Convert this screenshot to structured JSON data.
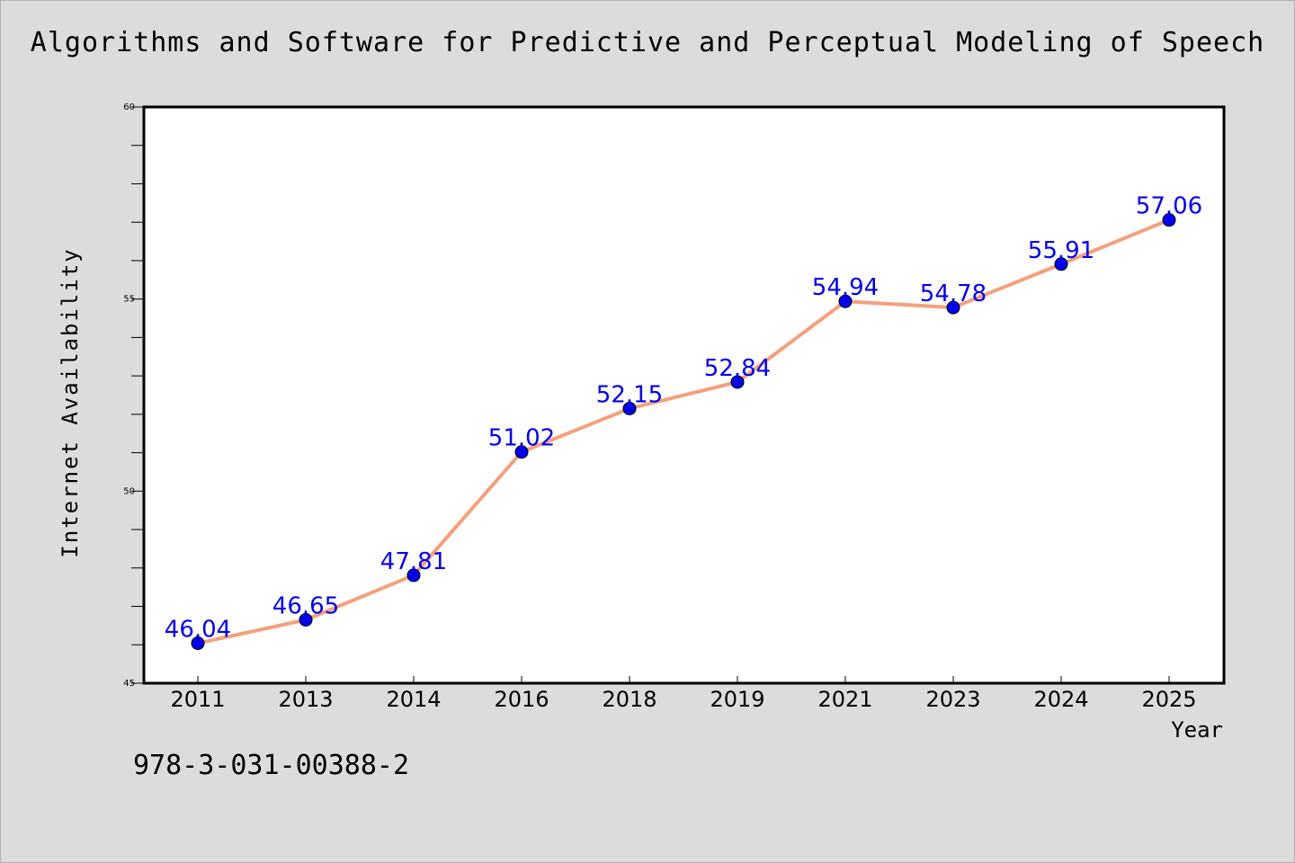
{
  "chart_data": {
    "type": "line",
    "title": "Algorithms and Software for Predictive and Perceptual Modeling of Speech",
    "xlabel": "Year",
    "ylabel": "Internet Availability",
    "categories": [
      "2011",
      "2013",
      "2014",
      "2016",
      "2018",
      "2019",
      "2021",
      "2023",
      "2024",
      "2025"
    ],
    "series": [
      {
        "values": [
          46.04,
          46.65,
          47.81,
          51.02,
          52.15,
          52.84,
          54.94,
          54.78,
          55.91,
          57.06
        ],
        "labels": [
          "46.04",
          "46.65",
          "47.81",
          "51.02",
          "52.15",
          "52.84",
          "54.94",
          "54.78",
          "55.91",
          "57.06"
        ]
      }
    ],
    "ylim": [
      45,
      60
    ],
    "yticks": [
      "45",
      "50",
      "55",
      "60"
    ],
    "grid": false,
    "line_color": "#f4a07c",
    "marker_color": "#0000ee",
    "label_color": "#0000ee"
  },
  "footer": {
    "isbn": "978-3-031-00388-2"
  }
}
